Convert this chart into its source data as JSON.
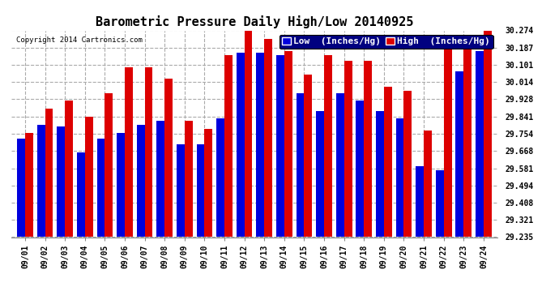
{
  "title": "Barometric Pressure Daily High/Low 20140925",
  "copyright": "Copyright 2014 Cartronics.com",
  "legend_low": "Low  (Inches/Hg)",
  "legend_high": "High  (Inches/Hg)",
  "dates": [
    "09/01",
    "09/02",
    "09/03",
    "09/04",
    "09/05",
    "09/06",
    "09/07",
    "09/08",
    "09/09",
    "09/10",
    "09/11",
    "09/12",
    "09/13",
    "09/14",
    "09/15",
    "09/16",
    "09/17",
    "09/18",
    "09/19",
    "09/20",
    "09/21",
    "09/22",
    "09/23",
    "09/24"
  ],
  "low": [
    29.73,
    29.8,
    29.79,
    29.66,
    29.73,
    29.76,
    29.8,
    29.82,
    29.7,
    29.7,
    29.83,
    30.16,
    30.16,
    30.15,
    29.96,
    29.87,
    29.96,
    29.92,
    29.87,
    29.83,
    29.59,
    29.57,
    30.07,
    30.17
  ],
  "high": [
    29.76,
    29.88,
    29.92,
    29.84,
    29.96,
    30.09,
    30.09,
    30.03,
    29.82,
    29.78,
    30.15,
    30.27,
    30.23,
    30.17,
    30.05,
    30.15,
    30.12,
    30.12,
    29.99,
    29.97,
    29.77,
    30.19,
    30.22,
    30.274
  ],
  "ylim_min": 29.235,
  "ylim_max": 30.274,
  "yticks": [
    29.235,
    29.321,
    29.408,
    29.494,
    29.581,
    29.668,
    29.754,
    29.841,
    29.928,
    30.014,
    30.101,
    30.187,
    30.274
  ],
  "bar_color_low": "#0000dd",
  "bar_color_high": "#dd0000",
  "bg_color": "#ffffff",
  "grid_color": "#aaaaaa",
  "title_fontsize": 11,
  "tick_fontsize": 7,
  "legend_fontsize": 8
}
